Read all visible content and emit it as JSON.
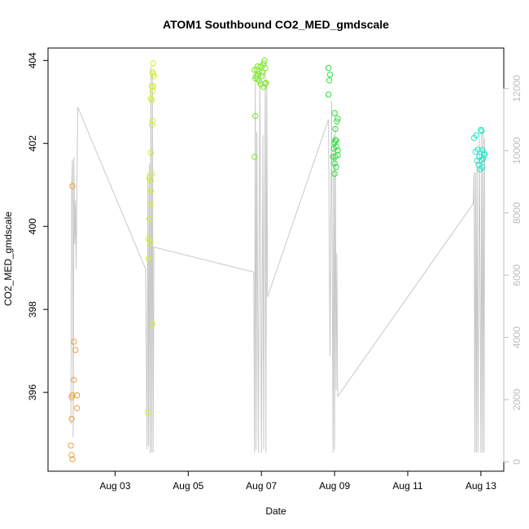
{
  "chart_data": {
    "type": "scatter",
    "title": "ATOM1 Southbound CO2_MED_gmdscale",
    "xlabel": "Date",
    "ylabel": "CO2_MED_gmdscale",
    "x_ticks": [
      "Aug 03",
      "Aug 05",
      "Aug 07",
      "Aug 09",
      "Aug 11",
      "Aug 13"
    ],
    "y_ticks": [
      396,
      398,
      400,
      402,
      404
    ],
    "y2_ticks": [
      0,
      2000,
      4000,
      6000,
      8000,
      10000,
      12000
    ],
    "xlim": [
      "Aug 01 04:00",
      "Aug 13 15:00"
    ],
    "ylim": [
      394.1,
      404.3
    ],
    "y2lim": [
      -300,
      13300
    ],
    "grid": false,
    "colors": {
      "line": "#c8c8c8",
      "orange": "#e8a33a",
      "yellow": "#d4ec2c",
      "green1": "#7de827",
      "green2": "#2ee03a",
      "cyan": "#23e6c5",
      "right_axis": "#bdbdbd"
    },
    "series": [
      {
        "color": "#e8a33a",
        "points": [
          [
            "Aug 01 20:00",
            400.97
          ],
          [
            "Aug 01 21:00",
            397.22
          ],
          [
            "Aug 01 22:00",
            397.02
          ],
          [
            "Aug 01 21:00",
            396.3
          ],
          [
            "Aug 01 19:30",
            395.88
          ],
          [
            "Aug 01 20:00",
            395.93
          ],
          [
            "Aug 01 23:00",
            395.93
          ],
          [
            "Aug 01 19:30",
            395.36
          ],
          [
            "Aug 01 23:00",
            395.62
          ],
          [
            "Aug 01 19:00",
            394.72
          ],
          [
            "Aug 01 19:30",
            394.49
          ],
          [
            "Aug 01 20:00",
            394.39
          ]
        ]
      },
      {
        "color": "#d4ec2c",
        "points": [
          [
            "Aug 03 21:30",
            395.52
          ],
          [
            "Aug 03 22:00",
            399.22
          ],
          [
            "Aug 03 22:00",
            399.7
          ],
          [
            "Aug 03 23:00",
            399.6
          ],
          [
            "Aug 03 22:30",
            400.18
          ],
          [
            "Aug 03 23:00",
            400.52
          ],
          [
            "Aug 03 23:30",
            400.86
          ],
          [
            "Aug 03 22:30",
            401.17
          ],
          [
            "Aug 04 00:00",
            401.27
          ],
          [
            "Aug 03 23:30",
            401.78
          ],
          [
            "Aug 04 00:00",
            402.45
          ],
          [
            "Aug 03 23:30",
            403.09
          ],
          [
            "Aug 04 00:00",
            403.05
          ],
          [
            "Aug 04 00:30",
            403.26
          ],
          [
            "Aug 04 00:00",
            403.38
          ],
          [
            "Aug 04 00:30",
            403.72
          ],
          [
            "Aug 04 01:00",
            403.67
          ],
          [
            "Aug 04 01:00",
            403.93
          ],
          [
            "Aug 04 01:30",
            403.62
          ],
          [
            "Aug 04 01:00",
            403.38
          ],
          [
            "Aug 04 00:30",
            402.55
          ],
          [
            "Aug 04 00:30",
            397.64
          ],
          [
            "Aug 03 23:30",
            401.1
          ]
        ]
      },
      {
        "color": "#7de827",
        "points": [
          [
            "Aug 06 19:30",
            401.68
          ],
          [
            "Aug 06 20:00",
            402.66
          ],
          [
            "Aug 06 20:00",
            403.57
          ],
          [
            "Aug 06 20:30",
            403.62
          ],
          [
            "Aug 06 21:00",
            403.78
          ],
          [
            "Aug 06 19:30",
            403.77
          ],
          [
            "Aug 06 22:00",
            403.66
          ],
          [
            "Aug 06 22:30",
            403.74
          ],
          [
            "Aug 06 21:30",
            403.86
          ],
          [
            "Aug 06 23:30",
            403.85
          ],
          [
            "Aug 07 00:00",
            403.63
          ],
          [
            "Aug 07 00:30",
            403.71
          ],
          [
            "Aug 07 01:00",
            403.88
          ],
          [
            "Aug 07 01:30",
            403.93
          ],
          [
            "Aug 07 02:00",
            404.0
          ],
          [
            "Aug 07 02:30",
            403.82
          ],
          [
            "Aug 07 03:00",
            403.46
          ],
          [
            "Aug 07 02:30",
            403.44
          ],
          [
            "Aug 07 01:30",
            403.36
          ],
          [
            "Aug 06 23:30",
            403.43
          ],
          [
            "Aug 06 22:30",
            403.5
          ],
          [
            "Aug 06 21:30",
            403.56
          ]
        ]
      },
      {
        "color": "#2ee03a",
        "points": [
          [
            "Aug 08 20:00",
            403.82
          ],
          [
            "Aug 08 21:00",
            403.66
          ],
          [
            "Aug 08 20:30",
            403.52
          ],
          [
            "Aug 08 20:00",
            403.18
          ],
          [
            "Aug 09 00:00",
            402.73
          ],
          [
            "Aug 09 02:00",
            402.6
          ],
          [
            "Aug 09 01:30",
            402.53
          ],
          [
            "Aug 09 00:30",
            402.35
          ],
          [
            "Aug 09 00:00",
            402.02
          ],
          [
            "Aug 09 01:00",
            402.07
          ],
          [
            "Aug 09 01:00",
            401.92
          ],
          [
            "Aug 09 02:00",
            401.83
          ],
          [
            "Aug 09 00:30",
            401.68
          ],
          [
            "Aug 09 02:00",
            401.72
          ],
          [
            "Aug 08 23:00",
            401.68
          ],
          [
            "Aug 09 00:00",
            401.52
          ],
          [
            "Aug 09 01:00",
            401.43
          ],
          [
            "Aug 09 00:00",
            401.27
          ],
          [
            "Aug 09 00:30",
            402.08
          ],
          [
            "Aug 08 23:30",
            401.88
          ]
        ]
      },
      {
        "color": "#23e6c5",
        "points": [
          [
            "Aug 12 19:30",
            402.13
          ],
          [
            "Aug 12 21:00",
            402.2
          ],
          [
            "Aug 13 00:00",
            402.33
          ],
          [
            "Aug 13 00:30",
            402.3
          ],
          [
            "Aug 13 01:00",
            401.84
          ],
          [
            "Aug 12 20:30",
            401.8
          ],
          [
            "Aug 12 22:00",
            401.85
          ],
          [
            "Aug 13 02:00",
            401.77
          ],
          [
            "Aug 13 02:30",
            401.72
          ],
          [
            "Aug 12 23:00",
            401.68
          ],
          [
            "Aug 13 00:30",
            401.6
          ],
          [
            "Aug 12 21:30",
            401.59
          ],
          [
            "Aug 13 01:30",
            401.64
          ],
          [
            "Aug 12 22:30",
            401.48
          ],
          [
            "Aug 13 01:00",
            401.43
          ],
          [
            "Aug 12 23:30",
            401.38
          ]
        ]
      }
    ],
    "secondary_line": {
      "color": "#c8c8c8",
      "points": [
        [
          "Aug 01 19:00",
          1200
        ],
        [
          "Aug 01 19:30",
          8900
        ],
        [
          "Aug 01 20:00",
          9700
        ],
        [
          "Aug 01 20:30",
          800
        ],
        [
          "Aug 01 21:00",
          9800
        ],
        [
          "Aug 01 21:30",
          7000
        ],
        [
          "Aug 01 22:00",
          8400
        ],
        [
          "Aug 01 22:30",
          6200
        ],
        [
          "Aug 01 23:30",
          11400
        ],
        [
          "Aug 03 20:00",
          6200
        ],
        [
          "Aug 03 21:00",
          400
        ],
        [
          "Aug 03 21:30",
          9300
        ],
        [
          "Aug 03 22:00",
          500
        ],
        [
          "Aug 03 22:30",
          9600
        ],
        [
          "Aug 03 23:00",
          300
        ],
        [
          "Aug 03 23:30",
          12700
        ],
        [
          "Aug 04 00:00",
          300
        ],
        [
          "Aug 04 00:30",
          12500
        ],
        [
          "Aug 04 01:00",
          300
        ],
        [
          "Aug 04 01:30",
          6900
        ],
        [
          "Aug 06 19:00",
          6100
        ],
        [
          "Aug 06 19:30",
          300
        ],
        [
          "Aug 06 20:00",
          12600
        ],
        [
          "Aug 06 20:30",
          400
        ],
        [
          "Aug 06 21:00",
          10600
        ],
        [
          "Aug 06 22:00",
          300
        ],
        [
          "Aug 06 23:00",
          12500
        ],
        [
          "Aug 07 00:00",
          300
        ],
        [
          "Aug 07 01:00",
          10500
        ],
        [
          "Aug 07 01:30",
          400
        ],
        [
          "Aug 07 02:30",
          12600
        ],
        [
          "Aug 07 03:00",
          300
        ],
        [
          "Aug 07 03:30",
          12200
        ],
        [
          "Aug 07 04:00",
          5300
        ],
        [
          "Aug 08 20:00",
          11000
        ],
        [
          "Aug 08 21:00",
          3400
        ],
        [
          "Aug 08 22:00",
          11600
        ],
        [
          "Aug 08 23:00",
          300
        ],
        [
          "Aug 08 23:30",
          10500
        ],
        [
          "Aug 09 00:00",
          400
        ],
        [
          "Aug 09 00:30",
          10800
        ],
        [
          "Aug 09 01:00",
          2300
        ],
        [
          "Aug 09 01:30",
          6700
        ],
        [
          "Aug 09 02:00",
          2100
        ],
        [
          "Aug 12 19:00",
          8300
        ],
        [
          "Aug 12 19:30",
          9300
        ],
        [
          "Aug 12 20:00",
          300
        ],
        [
          "Aug 12 20:30",
          9300
        ],
        [
          "Aug 12 21:00",
          300
        ],
        [
          "Aug 12 21:30",
          9900
        ],
        [
          "Aug 12 22:00",
          300
        ],
        [
          "Aug 12 23:00",
          10400
        ],
        [
          "Aug 13 00:00",
          300
        ],
        [
          "Aug 13 00:30",
          10600
        ],
        [
          "Aug 13 01:00",
          300
        ],
        [
          "Aug 13 01:30",
          10700
        ],
        [
          "Aug 13 02:00",
          300
        ],
        [
          "Aug 13 02:30",
          10400
        ]
      ]
    }
  }
}
